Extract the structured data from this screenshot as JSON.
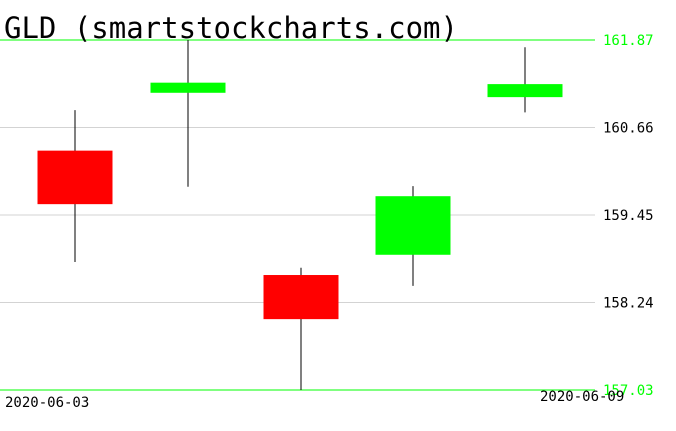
{
  "chart_data": {
    "type": "candlestick",
    "title": "GLD (smartstockcharts.com)",
    "x_tick_labels": [
      "2020-06-03",
      "2020-06-09"
    ],
    "y_ticks": [
      161.87,
      160.66,
      159.45,
      158.24,
      157.03
    ],
    "ylim": [
      157.03,
      161.87
    ],
    "grid": true,
    "colors": {
      "up": "#00ff00",
      "down": "#ff0000",
      "grid": "#d3d3d3",
      "bound": "#00ff00",
      "bound_label": "#00ff00",
      "tick_label": "#000000"
    },
    "candles": [
      {
        "open": 160.34,
        "high": 160.9,
        "low": 158.8,
        "close": 159.6
      },
      {
        "open": 161.14,
        "high": 161.87,
        "low": 159.84,
        "close": 161.28
      },
      {
        "open": 158.62,
        "high": 158.72,
        "low": 157.03,
        "close": 158.01
      },
      {
        "open": 158.9,
        "high": 159.85,
        "low": 158.47,
        "close": 159.71
      },
      {
        "open": 161.08,
        "high": 161.77,
        "low": 160.87,
        "close": 161.26
      }
    ]
  }
}
